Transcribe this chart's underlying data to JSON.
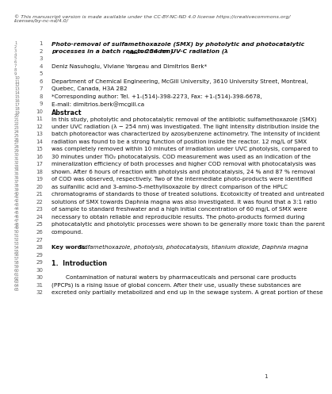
{
  "bg_color": "#ffffff",
  "copyright_line1": "© This manuscript version is made available under the CC-BY-NC-ND 4.0 license https://creativecommons.org/",
  "copyright_line2": "licenses/by-nc-nd/4.0/",
  "abstract_lines": [
    [
      "11",
      "In this study, photolytic and photocatalytic removal of the antibiotic sulfamethoxazole (SMX)"
    ],
    [
      "12",
      "under UVC radiation (λ − 254 nm) was investigated. The light intensity distribution inside the"
    ],
    [
      "13",
      "batch photoreactor was characterized by azosybenzene actinometry. The intensity of incident"
    ],
    [
      "14",
      "radiation was found to be a strong function of position inside the reactor. 12 mg/L of SMX"
    ],
    [
      "15",
      "was completely removed within 10 minutes of irradiation under UVC photolysis, compared to"
    ],
    [
      "16",
      "30 minutes under TiO₂ photocatalysis. COD measurement was used as an indication of the"
    ],
    [
      "17",
      "mineralization efficiency of both processes and higher COD removal with photocatalysis was"
    ],
    [
      "18",
      "shown. After 6 hours of reaction with photolysis and photocatalysis, 24 % and 87 % removal"
    ],
    [
      "19",
      "of COD was observed, respectively. Two of the intermediate photo-products were identified"
    ],
    [
      "20",
      "as sulfanilic acid and 3-amino-5-methylisoxazole by direct comparison of the HPLC"
    ],
    [
      "21",
      "chromatograms of standards to those of treated solutions. Ecotoxicity of treated and untreated"
    ],
    [
      "22",
      "solutions of SMX towards Daphnia magna was also investigated. It was found that a 3:1 ratio"
    ],
    [
      "23",
      "of sample to standard freshwater and a high initial concentration of 60 mg/L of SMX were"
    ],
    [
      "24",
      "necessary to obtain reliable and reproducible results. The photo-products formed during"
    ],
    [
      "25",
      "photocatalytic and photolytic processes were shown to be generally more toxic than the parent"
    ],
    [
      "26",
      "compound."
    ]
  ],
  "intro_lines": [
    [
      "30",
      "        Contamination of natural waters by pharmaceuticals and personal care products"
    ],
    [
      "31",
      "(PPCPs) is a rising issue of global concern. After their use, usually these substances are"
    ],
    [
      "32",
      "excreted only partially metabolized and end up in the sewage system. A great portion of these"
    ]
  ],
  "page_number": "1"
}
